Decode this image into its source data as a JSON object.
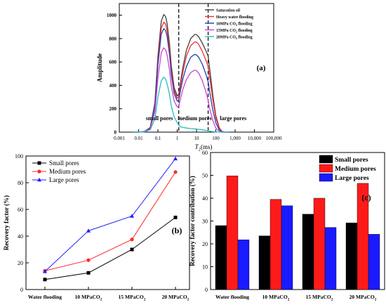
{
  "chart_data": [
    {
      "panel": "(a)",
      "type": "line",
      "x_scale": "log",
      "xlabel_main": "T",
      "xlabel_sub": "2",
      "xlabel_unit": "(ms)",
      "ylabel": "Amplitude",
      "xlim": [
        0.001,
        100000
      ],
      "ylim": [
        0,
        1100
      ],
      "x_ticks": [
        0.001,
        0.01,
        0.1,
        1,
        10,
        100,
        1000,
        10000,
        100000
      ],
      "x_tick_labels": [
        "0.001",
        "0.01",
        "0.1",
        "1",
        "10",
        "100",
        "1,000",
        "10,000",
        "100,000"
      ],
      "y_ticks": [
        0,
        200,
        400,
        600,
        800,
        1000
      ],
      "y_tick_labels": [
        "0",
        "200",
        "400",
        "600",
        "800",
        "1000"
      ],
      "dividers": [
        1.2,
        40
      ],
      "region_labels": [
        "small pores",
        "medium pores",
        "large pores"
      ],
      "legend_position": "top-right",
      "series": [
        {
          "name": "Saturation oil",
          "color": "#404040",
          "x": [
            0.005,
            0.01,
            0.02,
            0.04,
            0.07,
            0.1,
            0.15,
            0.2,
            0.25,
            0.3,
            0.4,
            0.5,
            0.7,
            1,
            1.2,
            1.5,
            2,
            3,
            5,
            8,
            10,
            13,
            20,
            30,
            40,
            50,
            70,
            100,
            150,
            200,
            300,
            500
          ],
          "y": [
            0,
            0,
            5,
            40,
            250,
            650,
            950,
            1005,
            990,
            930,
            750,
            560,
            380,
            310,
            325,
            430,
            560,
            700,
            800,
            835,
            835,
            815,
            760,
            700,
            650,
            520,
            320,
            140,
            40,
            8,
            0,
            0
          ]
        },
        {
          "name": "Heavy water flooding",
          "color": "#ff2a2a",
          "x": [
            0.005,
            0.01,
            0.02,
            0.04,
            0.07,
            0.1,
            0.15,
            0.2,
            0.25,
            0.3,
            0.4,
            0.5,
            0.7,
            1,
            1.2,
            1.5,
            2,
            3,
            5,
            8,
            10,
            13,
            20,
            30,
            40,
            50,
            70,
            100,
            150,
            200,
            300,
            500
          ],
          "y": [
            0,
            0,
            5,
            38,
            235,
            610,
            890,
            940,
            925,
            870,
            700,
            520,
            355,
            290,
            300,
            400,
            520,
            650,
            740,
            770,
            770,
            750,
            690,
            620,
            560,
            450,
            280,
            120,
            35,
            6,
            0,
            0
          ]
        },
        {
          "name": "10MPa CO₂ flooding",
          "color": "#1f3fb0",
          "x": [
            0.005,
            0.01,
            0.02,
            0.04,
            0.07,
            0.1,
            0.15,
            0.2,
            0.25,
            0.3,
            0.4,
            0.5,
            0.7,
            1,
            1.2,
            1.5,
            2,
            3,
            5,
            8,
            10,
            13,
            20,
            30,
            40,
            50,
            70,
            100,
            150,
            200,
            300,
            500
          ],
          "y": [
            0,
            0,
            5,
            35,
            220,
            575,
            840,
            885,
            870,
            820,
            660,
            490,
            330,
            265,
            275,
            360,
            460,
            560,
            640,
            665,
            660,
            640,
            580,
            500,
            430,
            330,
            190,
            80,
            20,
            4,
            0,
            0
          ]
        },
        {
          "name": "15MPa CO₂ flooding",
          "color": "#cc44cc",
          "x": [
            0.005,
            0.01,
            0.02,
            0.04,
            0.07,
            0.1,
            0.15,
            0.2,
            0.25,
            0.3,
            0.4,
            0.5,
            0.7,
            1,
            1.2,
            1.5,
            2,
            3,
            5,
            8,
            10,
            13,
            20,
            30,
            40,
            50,
            70,
            100,
            150,
            200,
            300,
            500
          ],
          "y": [
            0,
            0,
            4,
            28,
            175,
            460,
            680,
            720,
            705,
            660,
            530,
            390,
            265,
            215,
            220,
            290,
            370,
            450,
            510,
            530,
            525,
            505,
            440,
            350,
            270,
            190,
            100,
            35,
            8,
            0,
            0,
            0
          ]
        },
        {
          "name": "20MPa CO₂ flooding",
          "color": "#22c0c0",
          "x": [
            0.005,
            0.01,
            0.02,
            0.04,
            0.07,
            0.1,
            0.15,
            0.2,
            0.25,
            0.3,
            0.4,
            0.5,
            0.7,
            1,
            1.2,
            1.5,
            2,
            3,
            5,
            8,
            10,
            13,
            20,
            30,
            40,
            50,
            70,
            100,
            150,
            200,
            300,
            500
          ],
          "y": [
            0,
            0,
            3,
            20,
            115,
            300,
            440,
            470,
            455,
            415,
            320,
            220,
            130,
            80,
            60,
            45,
            40,
            35,
            30,
            28,
            26,
            24,
            20,
            15,
            12,
            8,
            4,
            2,
            0,
            0,
            0,
            0
          ]
        }
      ]
    },
    {
      "panel": "(b)",
      "type": "line",
      "categories": [
        "Water flooding",
        "10 MPaCO₂",
        "15 MPaCO₂",
        "20 MPaCO₂"
      ],
      "ylabel": "Recovery factor (%)",
      "ylim": [
        0,
        100
      ],
      "y_ticks": [
        0,
        20,
        40,
        60,
        80,
        100
      ],
      "y_tick_labels": [
        "0",
        "20",
        "40",
        "60",
        "80",
        "100"
      ],
      "legend_position": "top-left",
      "series": [
        {
          "name": "Small pores",
          "color": "#000000",
          "marker": "square",
          "values": [
            7.5,
            12.5,
            30,
            54
          ]
        },
        {
          "name": "Medium pores",
          "color": "#ff2a2a",
          "marker": "circle",
          "values": [
            14,
            22,
            37.5,
            88
          ]
        },
        {
          "name": "Large pores",
          "color": "#1f1fff",
          "marker": "triangle",
          "values": [
            13.5,
            44,
            55,
            98
          ]
        }
      ]
    },
    {
      "panel": "(c)",
      "type": "bar",
      "categories": [
        "Water flooding",
        "10 MPaCO₂",
        "15 MPaCO₂",
        "20 MPaCO₂"
      ],
      "ylabel": "Recovery factor contribution (%)",
      "ylim": [
        0,
        60
      ],
      "y_ticks": [
        0,
        10,
        20,
        30,
        40,
        50,
        60
      ],
      "y_tick_labels": [
        "0",
        "10",
        "20",
        "30",
        "40",
        "50",
        "60"
      ],
      "legend_position": "top-right",
      "series": [
        {
          "name": "Small pores",
          "color": "#000000",
          "values": [
            28,
            23.5,
            33,
            29.2
          ]
        },
        {
          "name": "Medium pores",
          "color": "#ff1a1a",
          "values": [
            49.8,
            39.5,
            40,
            46.5
          ]
        },
        {
          "name": "Large pores",
          "color": "#1a1aff",
          "values": [
            21.8,
            36.7,
            27.2,
            24.2
          ]
        }
      ]
    }
  ]
}
